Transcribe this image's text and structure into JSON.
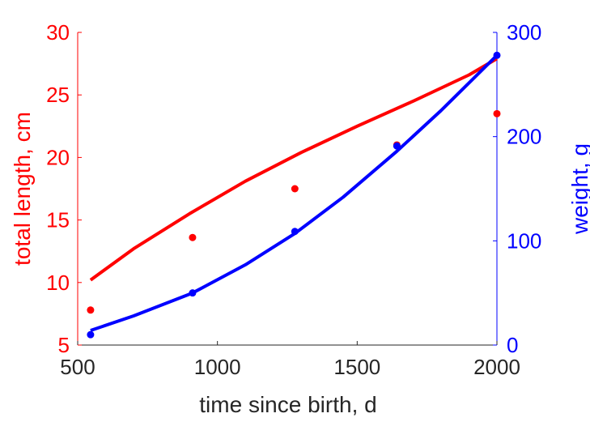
{
  "chart_data": {
    "type": "line",
    "xlabel": "time since birth, d",
    "ylabel_left": "total length, cm",
    "ylabel_right": "weight, g",
    "xlim": [
      500,
      2000
    ],
    "ylim_left": [
      5,
      30
    ],
    "ylim_right": [
      0,
      300
    ],
    "xticks": [
      500,
      1000,
      1500,
      2000
    ],
    "yticks_left": [
      5,
      10,
      15,
      20,
      25,
      30
    ],
    "yticks_right": [
      0,
      100,
      200,
      300
    ],
    "grid": false,
    "colors": {
      "left": "#ff0000",
      "right": "#0000ff",
      "axis": "#262626"
    },
    "series": [
      {
        "axis": "left",
        "kind": "points",
        "x": [
          546,
          911,
          1277,
          1642,
          2000
        ],
        "values": [
          7.8,
          13.6,
          17.5,
          21.0,
          23.5
        ]
      },
      {
        "axis": "left",
        "kind": "line",
        "x": [
          546,
          700,
          900,
          1100,
          1300,
          1500,
          1700,
          1900,
          2000
        ],
        "values": [
          10.2,
          12.7,
          15.5,
          18.1,
          20.4,
          22.5,
          24.5,
          26.6,
          27.9
        ]
      },
      {
        "axis": "right",
        "kind": "points",
        "x": [
          546,
          911,
          1277,
          1642,
          2000
        ],
        "values": [
          10,
          50,
          109,
          191,
          278
        ]
      },
      {
        "axis": "right",
        "kind": "line",
        "x": [
          546,
          700,
          911,
          1100,
          1277,
          1450,
          1642,
          1800,
          2000
        ],
        "values": [
          14,
          28,
          50,
          77,
          107,
          142,
          186,
          225,
          278
        ]
      }
    ]
  }
}
